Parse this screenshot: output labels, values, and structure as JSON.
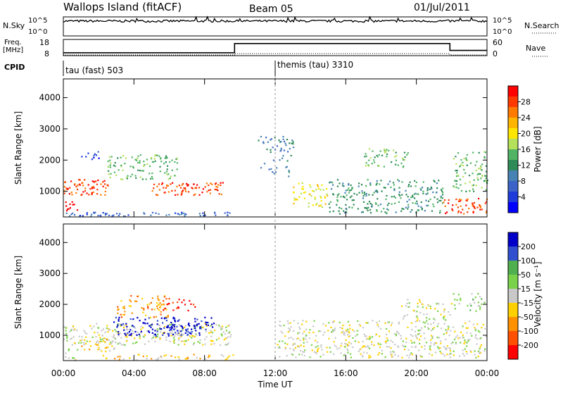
{
  "header": {
    "station": "Wallops Island (fitACF)",
    "beam": "Beam 05",
    "date": "01/Jul/2011"
  },
  "chart_data": [
    {
      "type": "line",
      "name_panel": "noise",
      "left_label": "N.Sky",
      "right_label": "N.Search",
      "ytick_labels": [
        "10^5",
        "10^0"
      ],
      "right_ytick_labels": [
        "10^5",
        "10^0"
      ],
      "series": [
        {
          "name": "N.Sky",
          "style": "solid",
          "level": 0.78
        },
        {
          "name": "N.Search",
          "style": "dotted",
          "level": 0.78
        }
      ]
    },
    {
      "type": "line",
      "name_panel": "frequency-nave",
      "left_label_line1": "Freq.",
      "left_label_line2": "[MHz]",
      "right_label": "Nave",
      "ytick_labels": [
        "18",
        "8"
      ],
      "right_ytick_labels": [
        "60",
        "0"
      ],
      "x": [
        0,
        9.7,
        9.7,
        21.9,
        21.9,
        24
      ],
      "freq": [
        9.8,
        9.8,
        15.5,
        15.5,
        11.2,
        11.2
      ],
      "nave": [
        2.5,
        2.5,
        7.5,
        7.5,
        2.5,
        2.5
      ],
      "freq_ylim": [
        8,
        18
      ],
      "nave_ylim": [
        0,
        60
      ]
    },
    {
      "type": "table",
      "name_panel": "cpid",
      "label": "CPID",
      "segments": [
        {
          "label": "tau (fast) 503",
          "start": 0
        },
        {
          "label": "themis (tau) 3310",
          "start": 12
        }
      ]
    },
    {
      "type": "heatmap",
      "name_panel": "power",
      "ylabel": "Slant Range [km]",
      "ytick_labels": [
        "1000",
        "2000",
        "3000",
        "4000"
      ],
      "ylim": [
        180,
        4600
      ],
      "xlim": [
        0,
        24
      ],
      "colorbar_label": "Power [dB]",
      "colorbar_ticks": [
        "28",
        "24",
        "20",
        "16",
        "12",
        "8",
        "4"
      ],
      "colorbar_colors": [
        "#ff0000",
        "#ff3a00",
        "#ff7a00",
        "#ffb400",
        "#ffe600",
        "#b4e05a",
        "#50b464",
        "#2e8b57",
        "#4682b4",
        "#3c64c8",
        "#1e3cdc",
        "#0000ff"
      ]
    },
    {
      "type": "heatmap",
      "name_panel": "velocity",
      "ylabel": "Slant Range [km]",
      "ytick_labels": [
        "1000",
        "2000",
        "3000",
        "4000"
      ],
      "ylim": [
        180,
        4600
      ],
      "xlim": [
        0,
        24
      ],
      "colorbar_label": "Velocity [m s⁻¹]",
      "colorbar_ticks": [
        "200",
        "100",
        "50",
        "15",
        "-15",
        "-50",
        "-100",
        "-200"
      ],
      "colorbar_colors": [
        "#0000c8",
        "#3050d0",
        "#50b050",
        "#7ad24a",
        "#c8c8c8",
        "#ffd000",
        "#ff9000",
        "#ff5000",
        "#ff0000"
      ]
    }
  ],
  "xaxis": {
    "tick_labels": [
      "00:00",
      "04:00",
      "08:00",
      "12:00",
      "16:00",
      "20:00",
      "00:00"
    ],
    "xlabel": "Time UT"
  }
}
